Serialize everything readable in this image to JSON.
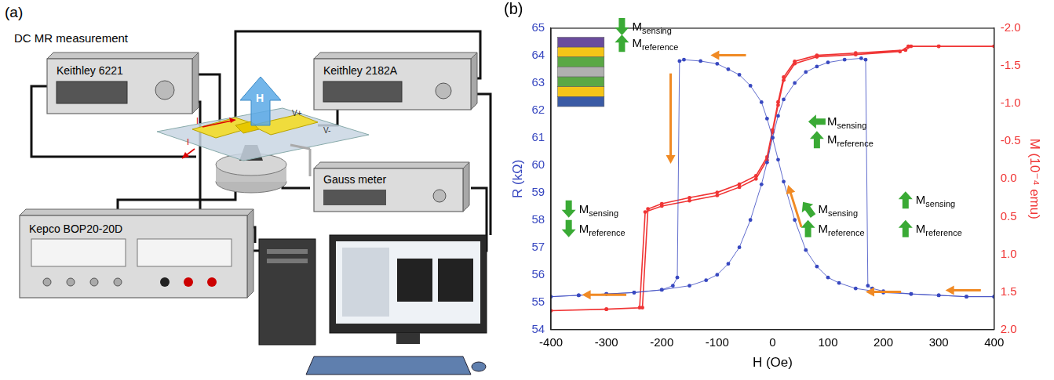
{
  "panel_a": {
    "label": "(a)",
    "title": "DC MR measurement",
    "instruments": {
      "current_source": "Keithley 6221",
      "nanovoltmeter": "Keithley 2182A",
      "gaussmeter": "Gauss meter",
      "power_supply": "Kepco BOP20-20D"
    },
    "field_label": "H",
    "current_labels": [
      "I",
      "I"
    ],
    "voltage_labels": [
      "V+",
      "V-"
    ]
  },
  "chart_data": {
    "type": "scatter",
    "panel_label": "(b)",
    "x_label": "H (Oe)",
    "y_label": "R (kΩ)",
    "y2_label": "M (10⁻⁴ emu)",
    "xlim": [
      -400,
      400
    ],
    "xticks": [
      -400,
      -300,
      -200,
      -100,
      0,
      100,
      200,
      300,
      400
    ],
    "ylim": [
      54,
      65
    ],
    "yticks": [
      54,
      55,
      56,
      57,
      58,
      59,
      60,
      61,
      62,
      63,
      64,
      65
    ],
    "y2lim": [
      2,
      -2
    ],
    "y2ticks": [
      {
        "value": -2,
        "label": "-2.0"
      },
      {
        "value": -1.5,
        "label": "-1.5"
      },
      {
        "value": -1,
        "label": "-1.0"
      },
      {
        "value": -0.5,
        "label": "-0.5"
      },
      {
        "value": 0,
        "label": "0.0"
      },
      {
        "value": 0.5,
        "label": "0.5"
      },
      {
        "value": 1,
        "label": "1.0"
      },
      {
        "value": 1.5,
        "label": "1.5"
      },
      {
        "value": 2,
        "label": "2.0"
      }
    ],
    "grid": false,
    "series": [
      {
        "color": "#3848c0",
        "marker": "circle",
        "line_style": "solid",
        "x": [
          400,
          350,
          300,
          250,
          200,
          150,
          120,
          100,
          80,
          60,
          40,
          20,
          10,
          0,
          -10,
          -20,
          -40,
          -60,
          -80,
          -100,
          -130,
          -160,
          -168,
          -172,
          -180,
          -200,
          -250,
          -300,
          -350,
          -400,
          -350,
          -300,
          -250,
          -200,
          -150,
          -120,
          -100,
          -80,
          -60,
          -40,
          -20,
          -10,
          0,
          10,
          20,
          40,
          60,
          80,
          100,
          130,
          160,
          168,
          172,
          180,
          200,
          250,
          300,
          350,
          400
        ],
        "values": [
          55.2,
          55.2,
          55.25,
          55.3,
          55.35,
          55.5,
          55.7,
          55.9,
          56.3,
          56.9,
          58.0,
          59.4,
          60.2,
          61.0,
          61.7,
          62.3,
          62.9,
          63.3,
          63.5,
          63.7,
          63.8,
          63.85,
          63.8,
          55.9,
          55.6,
          55.45,
          55.35,
          55.3,
          55.25,
          55.2,
          55.25,
          55.3,
          55.35,
          55.45,
          55.6,
          55.8,
          56.0,
          56.4,
          57.0,
          58.0,
          59.3,
          60.1,
          61.0,
          61.8,
          62.4,
          63.0,
          63.4,
          63.6,
          63.75,
          63.85,
          63.9,
          63.85,
          55.6,
          55.5,
          55.4,
          55.3,
          55.25,
          55.2,
          55.2
        ]
      },
      {
        "color": "#f03434",
        "marker": "circle",
        "line_style": "solid",
        "axis": "y2",
        "x": [
          400,
          300,
          250,
          240,
          150,
          80,
          40,
          20,
          10,
          0,
          -10,
          -30,
          -60,
          -100,
          -150,
          -200,
          -225,
          -235,
          -300,
          -400,
          -300,
          -240,
          -230,
          -200,
          -150,
          -100,
          -60,
          -30,
          -10,
          0,
          10,
          20,
          40,
          80,
          150,
          230,
          245,
          300,
          400
        ],
        "values": [
          -1.76,
          -1.76,
          -1.76,
          -1.71,
          -1.67,
          -1.64,
          -1.56,
          -1.35,
          -1.02,
          -0.65,
          -0.29,
          -0.04,
          0.07,
          0.18,
          0.25,
          0.33,
          0.4,
          1.71,
          1.73,
          1.75,
          1.73,
          1.71,
          0.44,
          0.36,
          0.29,
          0.22,
          0.11,
          0,
          -0.25,
          -0.62,
          -0.98,
          -1.31,
          -1.53,
          -1.62,
          -1.65,
          -1.69,
          -1.76,
          -1.76,
          -1.76
        ]
      }
    ],
    "annotations": [
      [
        {
          "main": "M",
          "sub": "sensing"
        },
        {
          "main": "M",
          "sub": "reference"
        }
      ],
      [
        {
          "main": "M",
          "sub": "sensing"
        },
        {
          "main": "M",
          "sub": "reference"
        }
      ],
      [
        {
          "main": "M",
          "sub": "sensing"
        },
        {
          "main": "M",
          "sub": "reference"
        }
      ],
      [
        {
          "main": "M",
          "sub": "sensing"
        },
        {
          "main": "M",
          "sub": "reference"
        }
      ],
      [
        {
          "main": "M",
          "sub": "sensing"
        },
        {
          "main": "M",
          "sub": "reference"
        }
      ]
    ]
  }
}
